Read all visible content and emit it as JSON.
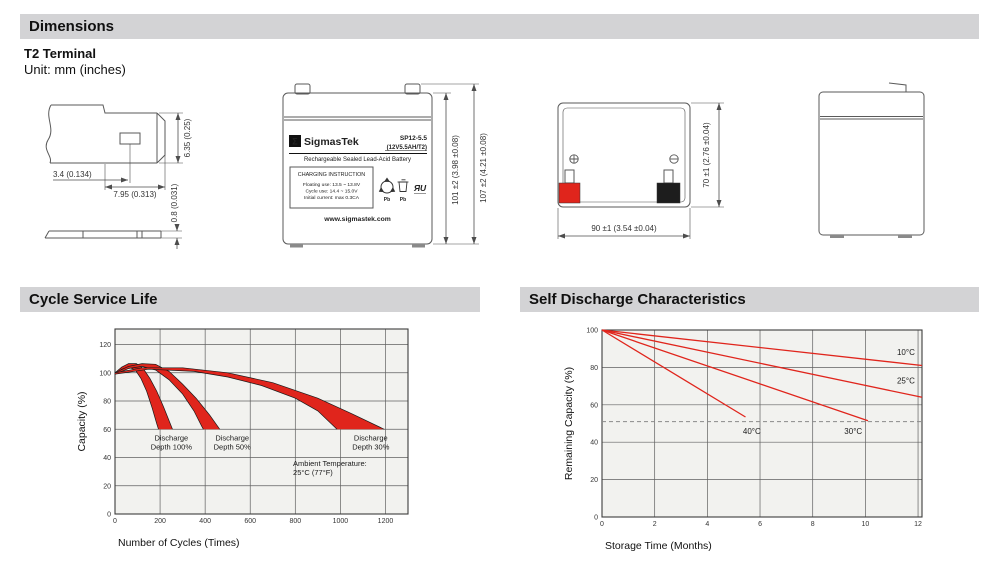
{
  "page": {
    "sections": {
      "dimensions": {
        "title": "Dimensions",
        "subtitle": "T2 Terminal",
        "unit_note": "Unit: mm (inches)",
        "terminal_detail": {
          "dim_hole_offset": "3.4 (0.134)",
          "dim_tab_length": "7.95 (0.313)",
          "dim_tab_width": "6.35 (0.25)",
          "dim_thickness": "0.8 (0.031)"
        },
        "front_view": {
          "logo_glyph": "Σ",
          "brand": "SigmasTek",
          "model": "SP12-5.5",
          "rating": "(12V5.5AH/T2)",
          "product_type": "Rechargeable Sealed Lead-Acid Battery",
          "charging_title": "CHARGING INSTRUCTION",
          "charging_lines": [
            "Floating use: 13.5 ~ 13.8V",
            "Cycle use: 14.4 ~ 15.0V",
            "Initial current: max 0.3CA"
          ],
          "website": "www.sigmastek.com",
          "recycle_caption": "Pb",
          "bin_caption": "Pb",
          "ul_mark": "ЯU",
          "dim_body_height": "101 ±2 (3.98 ±0.08)",
          "dim_total_height": "107 ±2 (4.21 ±0.08)"
        },
        "top_view": {
          "dim_length": "90 ±1 (3.54 ±0.04)",
          "dim_width": "70 ±1 (2.76 ±0.04)",
          "positive_color": "#e0251c",
          "negative_color": "#1d1d1d"
        }
      },
      "cycle_service_life": {
        "title": "Cycle Service Life"
      },
      "self_discharge": {
        "title": "Self Discharge Characteristics"
      }
    }
  },
  "chart_data": [
    {
      "id": "cycle-service-life",
      "type": "area",
      "title": "Cycle Service Life",
      "xlabel": "Number of Cycles (Times)",
      "ylabel": "Capacity (%)",
      "xlim": [
        0,
        1300
      ],
      "ylim": [
        0,
        131
      ],
      "xticks": [
        0,
        200,
        400,
        600,
        800,
        1000,
        1200
      ],
      "yticks": [
        0,
        20,
        40,
        60,
        80,
        100,
        120
      ],
      "grid": true,
      "legend_position": "none",
      "colors": {
        "accent": "#e0251c",
        "plot_bg": "#f2f2ef",
        "grid": "#606060",
        "border": "#3c3c3c",
        "band_stroke": "#1a1a1a"
      },
      "bands": [
        {
          "name": "Discharge Depth 100%",
          "upper": [
            [
              0,
              100
            ],
            [
              30,
              104
            ],
            [
              60,
              106.5
            ],
            [
              95,
              106.5
            ],
            [
              125,
              103
            ],
            [
              155,
              96
            ],
            [
              185,
              87
            ],
            [
              215,
              76
            ],
            [
              240,
              66
            ],
            [
              255,
              60
            ]
          ],
          "lower": [
            [
              0,
              99
            ],
            [
              30,
              102.5
            ],
            [
              60,
              104
            ],
            [
              90,
              102
            ],
            [
              115,
              96
            ],
            [
              140,
              87
            ],
            [
              165,
              75
            ],
            [
              185,
              64
            ],
            [
              193,
              60
            ]
          ]
        },
        {
          "name": "Discharge Depth 50%",
          "upper": [
            [
              0,
              100
            ],
            [
              60,
              104.5
            ],
            [
              120,
              106.5
            ],
            [
              180,
              106
            ],
            [
              240,
              101
            ],
            [
              300,
              92
            ],
            [
              360,
              82
            ],
            [
              420,
              70
            ],
            [
              465,
              60
            ]
          ],
          "lower": [
            [
              0,
              99
            ],
            [
              60,
              103
            ],
            [
              120,
              104.5
            ],
            [
              180,
              102
            ],
            [
              240,
              95
            ],
            [
              300,
              85
            ],
            [
              350,
              73
            ],
            [
              385,
              62
            ],
            [
              392,
              60
            ]
          ]
        },
        {
          "name": "Discharge Depth 30%",
          "upper": [
            [
              0,
              100
            ],
            [
              120,
              103.5
            ],
            [
              300,
              103.5
            ],
            [
              500,
              100
            ],
            [
              700,
              93
            ],
            [
              900,
              82
            ],
            [
              1050,
              71
            ],
            [
              1195,
              60
            ]
          ],
          "lower": [
            [
              0,
              99
            ],
            [
              150,
              102.5
            ],
            [
              350,
              101
            ],
            [
              500,
              97
            ],
            [
              650,
              91
            ],
            [
              800,
              82
            ],
            [
              900,
              73
            ],
            [
              985,
              60
            ]
          ]
        }
      ],
      "annotations": [
        {
          "lines": [
            "Discharge",
            "Depth 100%"
          ],
          "x": 250,
          "y": 52,
          "anchor": "middle"
        },
        {
          "lines": [
            "Discharge",
            "Depth 50%"
          ],
          "x": 520,
          "y": 52,
          "anchor": "middle"
        },
        {
          "lines": [
            "Discharge",
            "Depth 30%"
          ],
          "x": 1135,
          "y": 52,
          "anchor": "middle"
        },
        {
          "lines": [
            "Ambient Temperature:",
            "25°C (77°F)"
          ],
          "x": 790,
          "y": 34,
          "anchor": "start"
        }
      ]
    },
    {
      "id": "self-discharge",
      "type": "line",
      "title": "Self Discharge Characteristics",
      "xlabel": "Storage Time (Months)",
      "ylabel": "Remaining Capacity (%)",
      "xlim": [
        0,
        12.15
      ],
      "ylim": [
        0,
        100
      ],
      "xticks": [
        0,
        2,
        4,
        6,
        8,
        10,
        12
      ],
      "yticks": [
        0,
        20,
        40,
        60,
        80,
        100
      ],
      "grid": true,
      "legend_position": "inline-labels",
      "colors": {
        "accent": "#e0251c",
        "plot_bg": "#f2f2ef",
        "grid": "#606060",
        "border": "#3c3c3c"
      },
      "series": [
        {
          "name": "10°C",
          "points": [
            [
              0,
              100
            ],
            [
              12.15,
              81
            ]
          ],
          "label_at": [
            11.2,
            86.5
          ]
        },
        {
          "name": "25°C",
          "points": [
            [
              0,
              100
            ],
            [
              12.15,
              64
            ]
          ],
          "label_at": [
            11.2,
            71.5
          ]
        },
        {
          "name": "30°C",
          "points": [
            [
              0,
              100
            ],
            [
              10.1,
              51.5
            ]
          ],
          "label_at": [
            9.2,
            44.5
          ]
        },
        {
          "name": "40°C",
          "points": [
            [
              0,
              100
            ],
            [
              5.45,
              53.5
            ]
          ],
          "label_at": [
            5.35,
            44.5
          ]
        }
      ],
      "dashed_line_y": 51
    }
  ]
}
